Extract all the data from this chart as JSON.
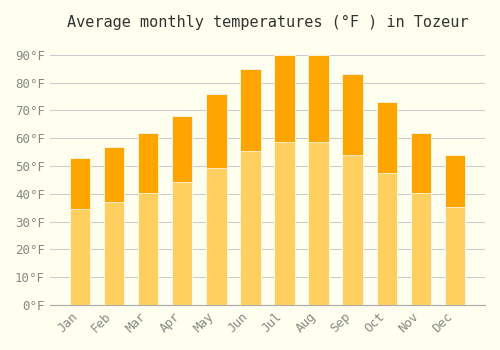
{
  "title": "Average monthly temperatures (°F ) in Tozeur",
  "months": [
    "Jan",
    "Feb",
    "Mar",
    "Apr",
    "May",
    "Jun",
    "Jul",
    "Aug",
    "Sep",
    "Oct",
    "Nov",
    "Dec"
  ],
  "values": [
    53,
    57,
    62,
    68,
    76,
    85,
    90,
    90,
    83,
    73,
    62,
    54
  ],
  "bar_color_top": "#FFA500",
  "bar_color_bottom": "#FFD060",
  "ylim": [
    0,
    95
  ],
  "yticks": [
    0,
    10,
    20,
    30,
    40,
    50,
    60,
    70,
    80,
    90
  ],
  "ytick_labels": [
    "0°F",
    "10°F",
    "20°F",
    "30°F",
    "40°F",
    "50°F",
    "60°F",
    "70°F",
    "80°F",
    "90°F"
  ],
  "background_color": "#FFFFF0",
  "grid_color": "#CCCCCC",
  "title_fontsize": 11,
  "tick_fontsize": 9
}
